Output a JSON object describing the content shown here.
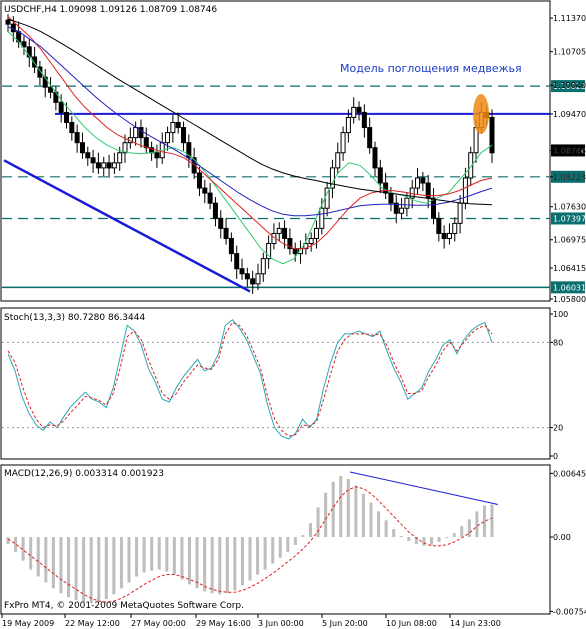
{
  "chart_data": [
    {
      "type": "candlestick",
      "title": "USDCHF,H4  1.09098 1.09126 1.08709 1.08746",
      "annotation": "Модель поглощения медвежья",
      "ylim": [
        1.058,
        1.1165
      ],
      "price_ticks": [
        "1.11370",
        "1.10705",
        "1.10040",
        "1.09470",
        "1.08745",
        "1.08223",
        "1.07630",
        "1.06975",
        "1.06415",
        "1.05800"
      ],
      "levels": [
        {
          "label": "1.10022",
          "value": 1.10022,
          "color": "#0b6e6e"
        },
        {
          "label": "1.08223",
          "value": 1.08223,
          "color": "#0b6e6e"
        },
        {
          "label": "1.07397",
          "value": 1.07397,
          "color": "#0b6e6e"
        },
        {
          "label": "1.06031",
          "value": 1.06031,
          "color": "#0b6e6e"
        }
      ],
      "current_price": {
        "label": "1.08746",
        "value": 1.08746
      },
      "resistance": 1.0947,
      "close_path": [
        1.1125,
        1.111,
        1.109,
        1.108,
        1.106,
        1.104,
        1.102,
        1.1,
        1.099,
        1.097,
        1.095,
        1.093,
        1.091,
        1.089,
        1.087,
        1.086,
        1.085,
        1.084,
        1.085,
        1.084,
        1.085,
        1.087,
        1.089,
        1.09,
        1.092,
        1.09,
        1.088,
        1.087,
        1.086,
        1.089,
        1.091,
        1.093,
        1.092,
        1.089,
        1.086,
        1.083,
        1.08,
        1.079,
        1.077,
        1.074,
        1.072,
        1.07,
        1.067,
        1.064,
        1.063,
        1.062,
        1.061,
        1.063,
        1.066,
        1.069,
        1.071,
        1.072,
        1.07,
        1.068,
        1.067,
        1.068,
        1.069,
        1.07,
        1.072,
        1.076,
        1.08,
        1.084,
        1.087,
        1.091,
        1.094,
        1.096,
        1.095,
        1.092,
        1.088,
        1.084,
        1.081,
        1.079,
        1.077,
        1.075,
        1.076,
        1.078,
        1.08,
        1.082,
        1.081,
        1.078,
        1.074,
        1.071,
        1.07,
        1.071,
        1.073,
        1.077,
        1.082,
        1.087,
        1.092,
        1.095,
        1.094,
        1.087
      ],
      "moving_averages": [
        {
          "color": "#2ecc71",
          "path": [
            1.111,
            1.109,
            1.106,
            1.103,
            1.1,
            1.097,
            1.0945,
            1.092,
            1.09,
            1.0885,
            1.0875,
            1.087,
            1.0868,
            1.087,
            1.0875,
            1.088,
            1.0872,
            1.0855,
            1.083,
            1.08,
            1.077,
            1.074,
            1.071,
            1.068,
            1.066,
            1.065,
            1.066,
            1.069,
            1.074,
            1.079,
            1.083,
            1.085,
            1.0845,
            1.0825,
            1.08,
            1.079,
            1.0785,
            1.0775,
            1.077,
            1.078,
            1.079,
            1.0815,
            1.084,
            1.087,
            1.0885
          ]
        },
        {
          "color": "#e02020",
          "path": [
            1.114,
            1.112,
            1.11,
            1.1075,
            1.1045,
            1.1015,
            1.0985,
            1.096,
            1.094,
            1.092,
            1.0905,
            1.0895,
            1.0885,
            1.0878,
            1.0872,
            1.0868,
            1.086,
            1.0845,
            1.0825,
            1.0805,
            1.0785,
            1.0765,
            1.0745,
            1.0725,
            1.0705,
            1.069,
            1.068,
            1.068,
            1.069,
            1.071,
            1.0735,
            1.076,
            1.078,
            1.079,
            1.0795,
            1.0795,
            1.0792,
            1.0788,
            1.0785,
            1.0785,
            1.0788,
            1.0795,
            1.0805,
            1.0815,
            1.082
          ]
        },
        {
          "color": "#2020c0",
          "path": [
            1.112,
            1.111,
            1.1095,
            1.108,
            1.106,
            1.104,
            1.102,
            1.1,
            1.098,
            1.0962,
            1.0945,
            1.093,
            1.0915,
            1.0902,
            1.089,
            1.0878,
            1.0865,
            1.085,
            1.0835,
            1.082,
            1.0805,
            1.079,
            1.0777,
            1.0765,
            1.0755,
            1.0748,
            1.0745,
            1.0745,
            1.0747,
            1.075,
            1.0755,
            1.076,
            1.0765,
            1.0767,
            1.0768,
            1.0768,
            1.0767,
            1.0766,
            1.0766,
            1.0768,
            1.0772,
            1.0778,
            1.0785,
            1.0793,
            1.08
          ]
        },
        {
          "color": "#000000",
          "path": [
            1.1135,
            1.1128,
            1.112,
            1.111,
            1.1098,
            1.1085,
            1.1072,
            1.1058,
            1.1044,
            1.103,
            1.1016,
            1.1003,
            1.099,
            1.0977,
            1.0964,
            1.0951,
            1.0938,
            1.0925,
            1.0912,
            1.0899,
            1.0886,
            1.0873,
            1.086,
            1.0848,
            1.0838,
            1.083,
            1.0824,
            1.0819,
            1.0815,
            1.081,
            1.0806,
            1.0802,
            1.0798,
            1.0795,
            1.0792,
            1.0789,
            1.0786,
            1.0783,
            1.078,
            1.0777,
            1.0774,
            1.0771,
            1.0769,
            1.0768,
            1.0767
          ]
        }
      ]
    },
    {
      "type": "line",
      "title": "Stoch(13,3,3) 80.7280 86.3444",
      "ylim": [
        0,
        100
      ],
      "ticks": [
        "100",
        "80",
        "20",
        "0"
      ],
      "levels": [
        80,
        20
      ],
      "series": [
        {
          "values": [
            72,
            60,
            42,
            30,
            22,
            18,
            24,
            20,
            28,
            35,
            40,
            45,
            40,
            38,
            34,
            48,
            70,
            92,
            88,
            78,
            62,
            52,
            40,
            38,
            48,
            56,
            62,
            68,
            60,
            62,
            72,
            92,
            96,
            90,
            82,
            70,
            58,
            36,
            20,
            14,
            12,
            16,
            26,
            20,
            26,
            48,
            66,
            80,
            86,
            86,
            88,
            86,
            84,
            88,
            74,
            62,
            52,
            40,
            44,
            48,
            60,
            68,
            78,
            82,
            72,
            82,
            88,
            92,
            94,
            80
          ]
        },
        {
          "values": [
            74,
            66,
            50,
            36,
            26,
            20,
            22,
            21,
            25,
            31,
            36,
            42,
            41,
            39,
            36,
            44,
            62,
            84,
            88,
            82,
            68,
            56,
            44,
            40,
            44,
            52,
            58,
            64,
            62,
            61,
            68,
            86,
            94,
            92,
            85,
            74,
            62,
            42,
            26,
            18,
            14,
            15,
            22,
            21,
            24,
            40,
            58,
            74,
            82,
            86,
            86,
            86,
            85,
            86,
            78,
            66,
            56,
            44,
            44,
            46,
            56,
            64,
            74,
            80,
            74,
            80,
            86,
            90,
            92,
            86
          ]
        }
      ]
    },
    {
      "type": "bar",
      "title": "MACD(12,26,9) 0.003314 0.001923",
      "ylim": [
        -0.0074,
        0.0068
      ],
      "ticks": [
        "0.006456",
        "0.00",
        "-0.007543"
      ],
      "values": [
        -0.0007,
        -0.0015,
        -0.0024,
        -0.0033,
        -0.004,
        -0.0046,
        -0.0052,
        -0.0057,
        -0.0061,
        -0.0064,
        -0.0066,
        -0.0067,
        -0.0066,
        -0.0063,
        -0.0058,
        -0.0052,
        -0.0046,
        -0.004,
        -0.0036,
        -0.0034,
        -0.0033,
        -0.0035,
        -0.0038,
        -0.0043,
        -0.0048,
        -0.0052,
        -0.0055,
        -0.0057,
        -0.0058,
        -0.0057,
        -0.0054,
        -0.0049,
        -0.0044,
        -0.0038,
        -0.0033,
        -0.0027,
        -0.0021,
        -0.0015,
        -0.0008,
        0.0002,
        0.0014,
        0.003,
        0.0045,
        0.0056,
        0.0062,
        0.0059,
        0.0052,
        0.0044,
        0.0035,
        0.0026,
        0.0017,
        0.0008,
        0.0001,
        -0.0004,
        -0.0007,
        -0.0009,
        -0.0008,
        -0.0005,
        -0.0001,
        0.0004,
        0.0011,
        0.0018,
        0.0026,
        0.0032,
        0.0033
      ],
      "signal": [
        -0.0002,
        -0.0007,
        -0.0013,
        -0.0019,
        -0.0025,
        -0.0031,
        -0.0037,
        -0.0043,
        -0.0048,
        -0.0053,
        -0.0058,
        -0.0062,
        -0.0065,
        -0.0066,
        -0.0065,
        -0.0062,
        -0.0058,
        -0.0053,
        -0.0048,
        -0.0044,
        -0.004,
        -0.0038,
        -0.0038,
        -0.004,
        -0.0043,
        -0.0046,
        -0.005,
        -0.0053,
        -0.0055,
        -0.0056,
        -0.0056,
        -0.0054,
        -0.0051,
        -0.0047,
        -0.0042,
        -0.0037,
        -0.0031,
        -0.0025,
        -0.0019,
        -0.0012,
        -0.0004,
        0.0006,
        0.0018,
        0.003,
        0.0041,
        0.0048,
        0.0051,
        0.0049,
        0.0044,
        0.0037,
        0.0029,
        0.0021,
        0.0013,
        0.0005,
        -0.0001,
        -0.0006,
        -0.0009,
        -0.0009,
        -0.0008,
        -0.0005,
        -0.0001,
        0.0004,
        0.0011,
        0.0016,
        0.0019
      ]
    }
  ],
  "x_axis": {
    "labels": [
      "19 May 2009",
      "22 May 12:00",
      "27 May 00:00",
      "29 May 16:00",
      "3 Jun 00:00",
      "5 Jun 20:00",
      "10 Jun 08:00",
      "14 Jun 23:00"
    ]
  },
  "footer": "FxPro MT4, © 2001-2009 MetaQuotes Software Corp."
}
